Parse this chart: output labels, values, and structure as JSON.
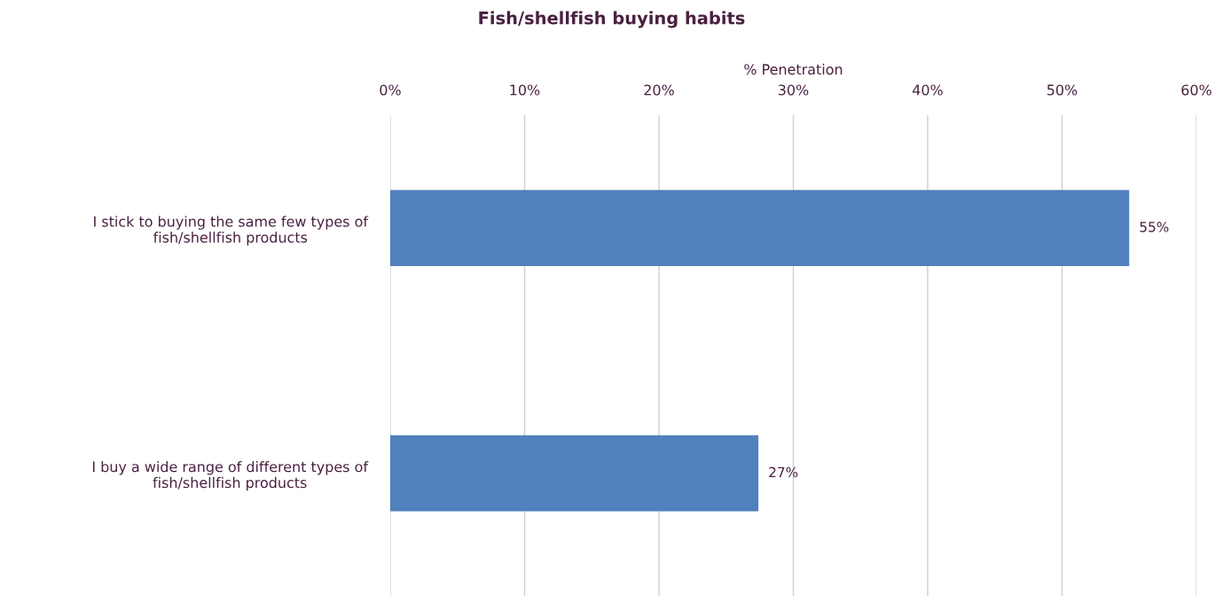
{
  "chart_data": {
    "type": "bar",
    "orientation": "horizontal",
    "title": "Fish/shellfish buying habits",
    "xlabel": "% Penetration",
    "categories": [
      "I stick to buying the same few types of\nfish/shellfish products",
      "I buy a wide range of different types of\nfish/shellfish products"
    ],
    "values": [
      55,
      27.4
    ],
    "value_labels": [
      "55%",
      "27%"
    ],
    "color": "#4f81bd",
    "xlim": [
      0,
      60
    ],
    "xticks": [
      {
        "value": 0,
        "label": "0%"
      },
      {
        "value": 10,
        "label": "10%"
      },
      {
        "value": 20,
        "label": "20%"
      },
      {
        "value": 30,
        "label": "30%"
      },
      {
        "value": 40,
        "label": "40%"
      },
      {
        "value": 50,
        "label": "50%"
      },
      {
        "value": 60,
        "label": "60%"
      }
    ],
    "grid": "x",
    "legend": false
  }
}
